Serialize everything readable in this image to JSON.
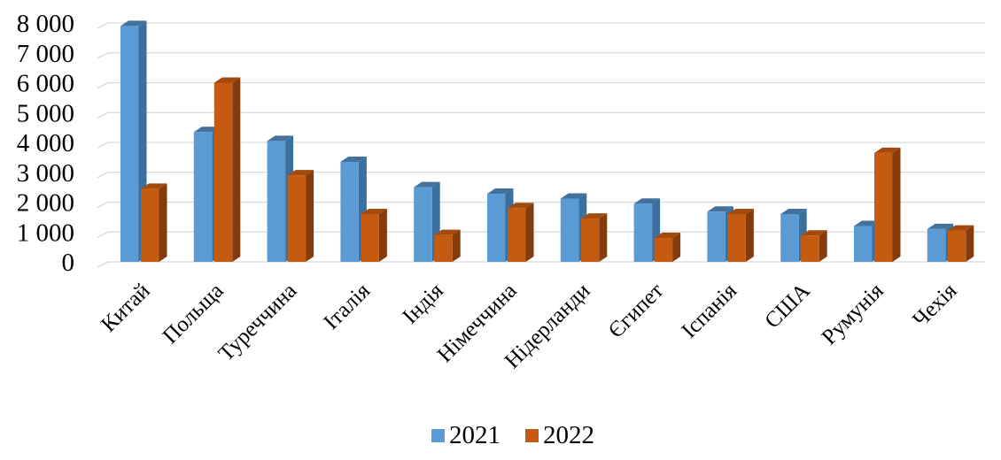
{
  "chart_data": {
    "type": "bar",
    "style": "3d-clustered-column",
    "categories": [
      "Китай",
      "Польща",
      "Туреччина",
      "Італія",
      "Індія",
      "Німеччина",
      "Нідерланди",
      "Єгипет",
      "Іспанія",
      "США",
      "Румунія",
      "Чехія"
    ],
    "series": [
      {
        "name": "2021",
        "color": "#5b9bd5",
        "side_color": "#3b6f9e",
        "top_color": "#41719c",
        "values": [
          7900,
          4350,
          4050,
          3350,
          2500,
          2280,
          2120,
          1950,
          1680,
          1600,
          1200,
          1100
        ]
      },
      {
        "name": "2022",
        "color": "#c55a11",
        "side_color": "#843c0c",
        "top_color": "#a34a0e",
        "values": [
          2450,
          6000,
          2900,
          1600,
          900,
          1800,
          1450,
          800,
          1600,
          880,
          3650,
          1050
        ]
      }
    ],
    "y_ticks": [
      "0",
      "1 000",
      "2 000",
      "3 000",
      "4 000",
      "5 000",
      "6 000",
      "7 000",
      "8 000"
    ],
    "ylim": [
      0,
      9000
    ],
    "grid": true,
    "legend_position": "bottom"
  }
}
